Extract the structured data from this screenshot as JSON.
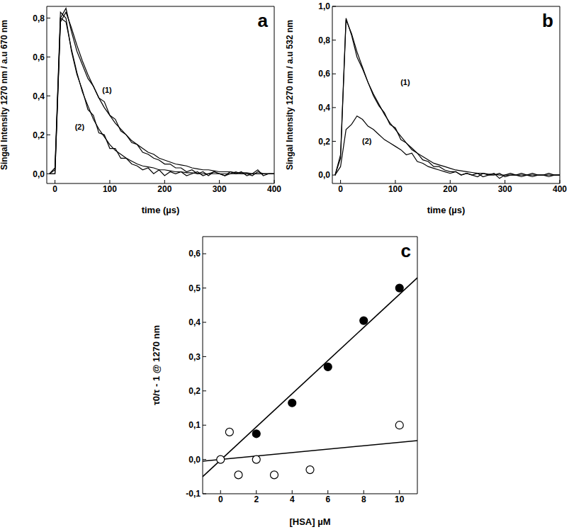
{
  "chart_data": [
    {
      "type": "line",
      "title": "a",
      "xlabel": "time (µs)",
      "ylabel": "Singal Intensity 1270 nm / a.u 670 nm",
      "xlim": [
        -15,
        400
      ],
      "xticks": [
        0,
        100,
        200,
        300,
        400
      ],
      "ylim": [
        -0.05,
        0.86
      ],
      "yticks": [
        {
          "value": 0,
          "label": "0,0"
        },
        {
          "value": 0.2,
          "label": "0,2"
        },
        {
          "value": 0.4,
          "label": "0,4"
        },
        {
          "value": 0.6,
          "label": "0,6"
        },
        {
          "value": 0.8,
          "label": "0,8"
        }
      ],
      "x": [
        -10,
        0,
        10,
        20,
        30,
        40,
        50,
        60,
        70,
        80,
        90,
        100,
        110,
        120,
        130,
        140,
        150,
        160,
        170,
        180,
        190,
        200,
        210,
        220,
        230,
        240,
        250,
        260,
        270,
        280,
        290,
        300,
        310,
        320,
        330,
        340,
        350,
        360,
        370,
        380,
        390,
        400
      ],
      "series": [
        {
          "color": "#000000",
          "values": [
            0,
            0.02,
            0.8,
            0.85,
            0.73,
            0.63,
            0.56,
            0.49,
            0.45,
            0.39,
            0.37,
            0.3,
            0.28,
            0.22,
            0.2,
            0.16,
            0.15,
            0.11,
            0.1,
            0.08,
            0.07,
            0.05,
            0.05,
            0.03,
            0.03,
            0.01,
            0.02,
            0.0,
            0.01,
            -0.01,
            0.01,
            0.0,
            -0.01,
            0.01,
            0.0,
            0.01,
            -0.01,
            0.0,
            0.02,
            -0.01,
            0.0,
            0.0
          ]
        },
        {
          "color": "#000000",
          "values": [
            0,
            0,
            0.78,
            0.83,
            0.75,
            0.66,
            0.58,
            0.51,
            0.45,
            0.39,
            0.34,
            0.3,
            0.26,
            0.23,
            0.2,
            0.17,
            0.15,
            0.13,
            0.11,
            0.1,
            0.08,
            0.07,
            0.06,
            0.05,
            0.045,
            0.04,
            0.03,
            0.025,
            0.02,
            0.02,
            0.015,
            0.01,
            0.01,
            0.01,
            0.005,
            0.005,
            0.005,
            0,
            0,
            0,
            0,
            0
          ]
        },
        {
          "color": "#000000",
          "values": [
            0,
            0.03,
            0.83,
            0.8,
            0.63,
            0.51,
            0.43,
            0.33,
            0.3,
            0.21,
            0.2,
            0.13,
            0.13,
            0.08,
            0.08,
            0.05,
            0.04,
            0.02,
            0.03,
            0.0,
            0.02,
            -0.01,
            0.01,
            0.0,
            0.01,
            -0.01,
            0.0,
            0.01,
            -0.01,
            0.0,
            0.01,
            0.0,
            -0.01,
            0.0,
            0.01,
            0.0,
            0.0,
            -0.01,
            0.01,
            0.0,
            0.0,
            0.0
          ]
        },
        {
          "color": "#000000",
          "values": [
            0,
            0,
            0.8,
            0.78,
            0.64,
            0.52,
            0.42,
            0.35,
            0.28,
            0.23,
            0.19,
            0.15,
            0.12,
            0.1,
            0.08,
            0.065,
            0.05,
            0.04,
            0.035,
            0.03,
            0.02,
            0.02,
            0.015,
            0.01,
            0.01,
            0.005,
            0.005,
            0,
            0,
            0,
            0,
            0,
            0,
            0,
            0,
            0,
            0,
            0,
            0,
            0,
            0,
            0
          ]
        }
      ],
      "annotations": [
        {
          "text": "(1)",
          "x": 95,
          "y": 0.43
        },
        {
          "text": "(2)",
          "x": 45,
          "y": 0.24
        }
      ]
    },
    {
      "type": "line",
      "title": "b",
      "xlabel": "time (µs)",
      "ylabel": "Singal Intensity 1270 nm / a.u 532 nm",
      "xlim": [
        -15,
        400
      ],
      "xticks": [
        0,
        100,
        200,
        300,
        400
      ],
      "ylim": [
        -0.05,
        1.0
      ],
      "yticks": [
        {
          "value": 0,
          "label": "0,0"
        },
        {
          "value": 0.2,
          "label": "0,2"
        },
        {
          "value": 0.4,
          "label": "0,4"
        },
        {
          "value": 0.6,
          "label": "0,6"
        },
        {
          "value": 0.8,
          "label": "0,8"
        },
        {
          "value": 1.0,
          "label": "1,0"
        }
      ],
      "x": [
        -10,
        0,
        10,
        20,
        30,
        40,
        50,
        60,
        70,
        80,
        90,
        100,
        110,
        120,
        130,
        140,
        150,
        160,
        170,
        180,
        190,
        200,
        210,
        220,
        230,
        240,
        250,
        260,
        270,
        280,
        290,
        300,
        310,
        320,
        330,
        340,
        350,
        360,
        370,
        380,
        390,
        400
      ],
      "series": [
        {
          "color": "#000000",
          "values": [
            0,
            0.12,
            0.93,
            0.83,
            0.7,
            0.63,
            0.55,
            0.47,
            0.41,
            0.37,
            0.3,
            0.28,
            0.21,
            0.19,
            0.15,
            0.13,
            0.09,
            0.08,
            0.05,
            0.05,
            0.03,
            0.02,
            0.02,
            0.0,
            0.01,
            0.0,
            0.01,
            -0.01,
            0.0,
            0.01,
            -0.02,
            0.0,
            0.01,
            0.0,
            -0.01,
            0.0,
            0.01,
            0.0,
            0.0,
            -0.01,
            0.0,
            0.0
          ]
        },
        {
          "color": "#000000",
          "values": [
            0,
            0.1,
            0.92,
            0.84,
            0.73,
            0.64,
            0.55,
            0.48,
            0.42,
            0.36,
            0.31,
            0.27,
            0.23,
            0.19,
            0.16,
            0.13,
            0.11,
            0.09,
            0.07,
            0.06,
            0.05,
            0.04,
            0.03,
            0.025,
            0.02,
            0.015,
            0.01,
            0.01,
            0.005,
            0.005,
            0,
            0,
            0,
            0,
            0,
            0,
            0,
            0,
            0,
            0,
            0,
            0
          ]
        },
        {
          "color": "#000000",
          "values": [
            0,
            0.05,
            0.27,
            0.3,
            0.35,
            0.33,
            0.29,
            0.27,
            0.24,
            0.21,
            0.19,
            0.17,
            0.15,
            0.12,
            0.13,
            0.08,
            0.07,
            0.05,
            0.04,
            0.03,
            0.02,
            0.01,
            0.02,
            0.0,
            0.01,
            0.0,
            -0.01,
            0.01,
            0.0,
            0.0,
            0.01,
            -0.01,
            0.0,
            0.0,
            0.01,
            0.0,
            -0.01,
            0.0,
            0.0,
            0.01,
            0.0,
            0.0
          ]
        }
      ],
      "annotations": [
        {
          "text": "(1)",
          "x": 118,
          "y": 0.55
        },
        {
          "text": "(2)",
          "x": 48,
          "y": 0.2
        }
      ]
    },
    {
      "type": "scatter",
      "title": "c",
      "xlabel": "[HSA] µM",
      "ylabel": "τ0/τ - 1 @ 1270 nm",
      "xlim": [
        -1,
        11
      ],
      "xticks": [
        0,
        2,
        4,
        6,
        8,
        10
      ],
      "ylim": [
        -0.1,
        0.65
      ],
      "yticks": [
        {
          "value": -0.1,
          "label": "-0,1"
        },
        {
          "value": 0,
          "label": "0,0"
        },
        {
          "value": 0.1,
          "label": "0,1"
        },
        {
          "value": 0.2,
          "label": "0,2"
        },
        {
          "value": 0.3,
          "label": "0,3"
        },
        {
          "value": 0.4,
          "label": "0,4"
        },
        {
          "value": 0.5,
          "label": "0,5"
        },
        {
          "value": 0.6,
          "label": "0,6"
        }
      ],
      "series": [
        {
          "type": "scatter",
          "marker": "filled",
          "color": "#000000",
          "x": [
            2,
            4,
            6,
            8,
            10
          ],
          "values": [
            0.075,
            0.165,
            0.27,
            0.405,
            0.5
          ]
        },
        {
          "type": "line",
          "color": "#000000",
          "x": [
            -1,
            11
          ],
          "values": [
            -0.05,
            0.53
          ]
        },
        {
          "type": "scatter",
          "marker": "open",
          "color": "#000000",
          "x": [
            0,
            0.5,
            1,
            2,
            3,
            5,
            10
          ],
          "values": [
            0,
            0.08,
            -0.045,
            0,
            -0.045,
            -0.03,
            0.1
          ]
        },
        {
          "type": "line",
          "color": "#000000",
          "x": [
            -1,
            11
          ],
          "values": [
            -0.005,
            0.055
          ]
        }
      ]
    }
  ]
}
